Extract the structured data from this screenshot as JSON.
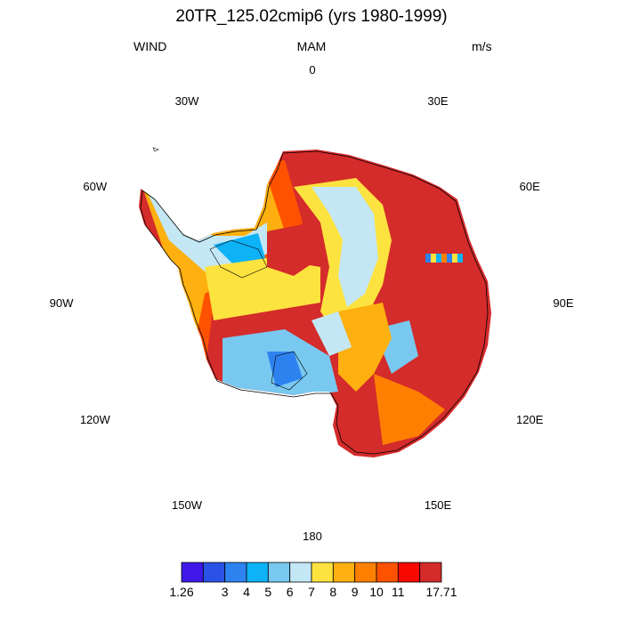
{
  "figure": {
    "title": "20TR_125.02cmip6 (yrs 1980-1999)",
    "left_label": "WIND",
    "center_label": "MAM",
    "right_label": "m/s"
  },
  "map": {
    "projection": "south-polar-stereographic",
    "variable": "WIND",
    "units": "m/s",
    "longitude_labels": [
      "0",
      "30E",
      "60E",
      "90E",
      "120E",
      "150E",
      "180",
      "150W",
      "120W",
      "90W",
      "60W",
      "30W"
    ]
  },
  "colorbar": {
    "orientation": "horizontal",
    "colors": [
      "#3f18e8",
      "#2b52e6",
      "#2e82f0",
      "#0db2f7",
      "#79c8f0",
      "#c4e7f5",
      "#fde33f",
      "#fdb00f",
      "#ff8000",
      "#ff5200",
      "#f80a00",
      "#d42b2b"
    ],
    "tick_labels": [
      "1.26",
      "3",
      "4",
      "5",
      "6",
      "7",
      "8",
      "9",
      "10",
      "11",
      "17.71"
    ]
  }
}
